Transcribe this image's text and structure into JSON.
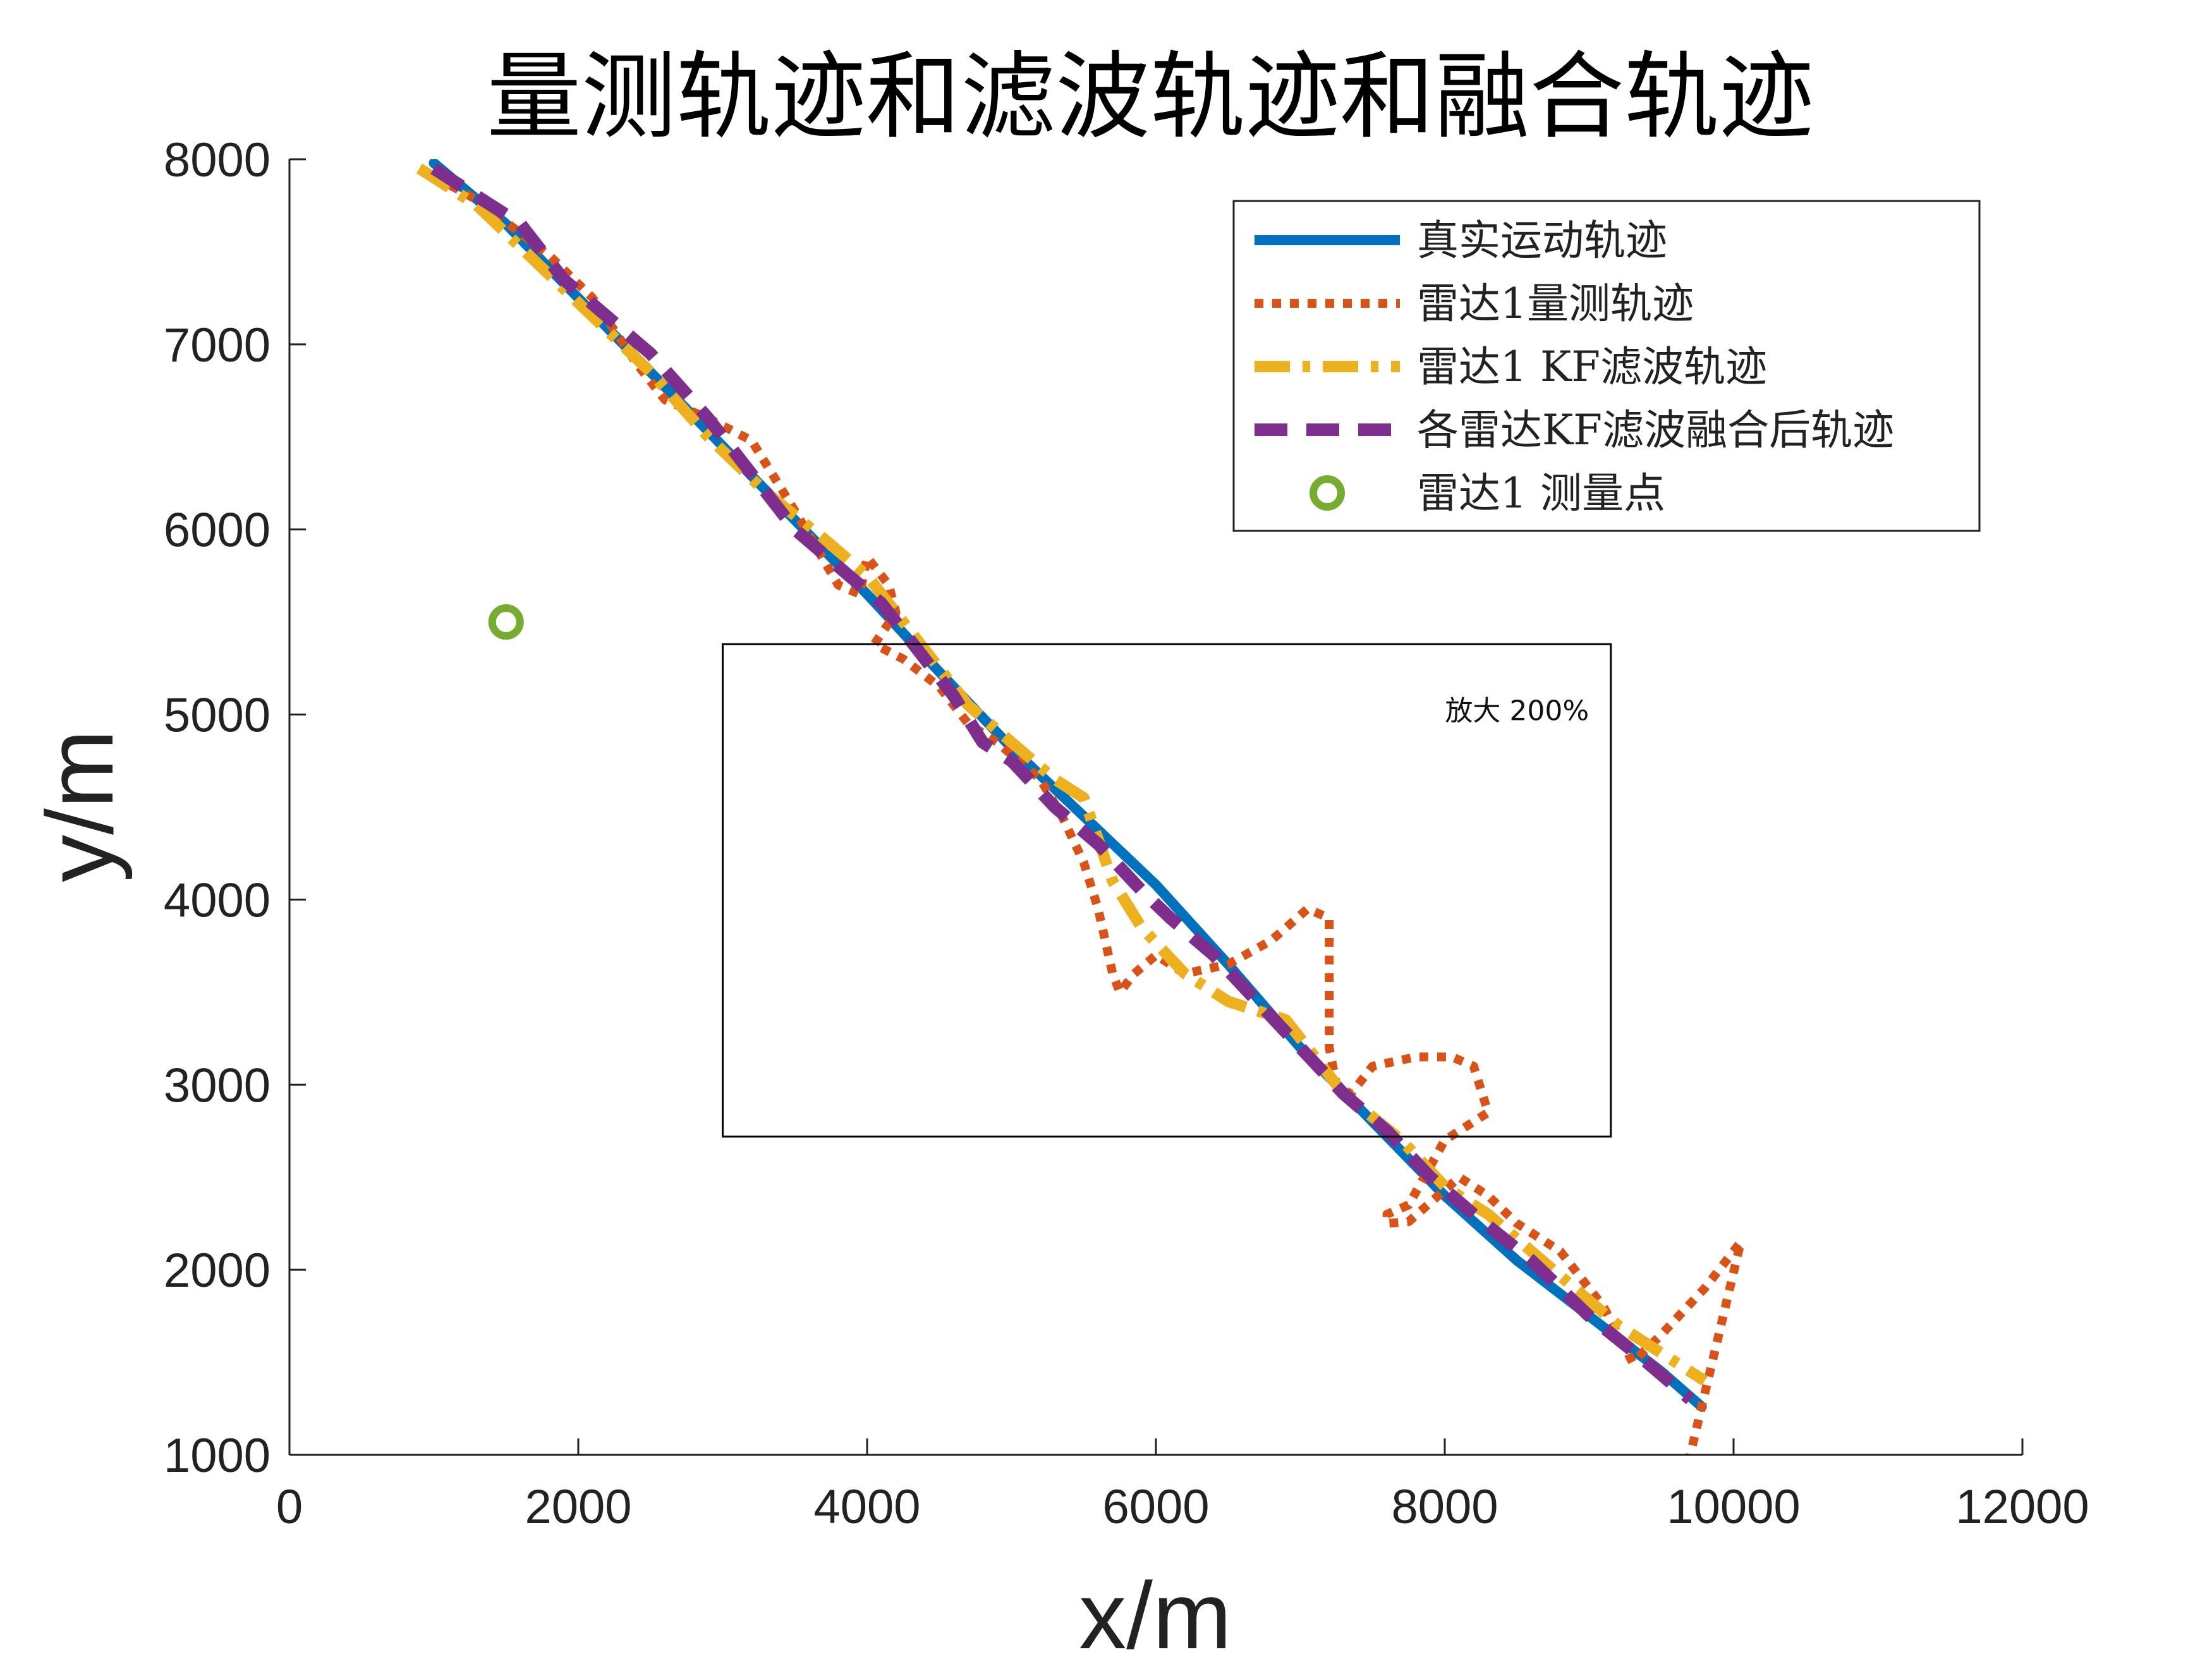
{
  "chart_data": {
    "type": "line",
    "title": "量测轨迹和滤波轨迹和融合轨迹",
    "xlabel": "x/m",
    "ylabel": "y/m",
    "xlim": [
      0,
      12000
    ],
    "ylim": [
      1000,
      8000
    ],
    "xticks": [
      "0",
      "2000",
      "4000",
      "6000",
      "8000",
      "10000",
      "12000"
    ],
    "yticks": [
      "1000",
      "2000",
      "3000",
      "4000",
      "5000",
      "6000",
      "7000",
      "8000"
    ],
    "grid": false,
    "legend_position": "top-right",
    "annotation": {
      "text": "放大 200%",
      "box_x": [
        3000,
        9150
      ],
      "box_y": [
        2720,
        5380
      ],
      "text_x": 8500,
      "text_y": 4970
    },
    "series": [
      {
        "name": "真实运动轨迹",
        "color": "#0072BD",
        "style": "solid",
        "x": [
          1000,
          1500,
          2000,
          2500,
          3000,
          3500,
          4000,
          4500,
          5000,
          5500,
          6000,
          6500,
          7000,
          7500,
          8000,
          8500,
          9000,
          9500,
          9780
        ],
        "y": [
          7980,
          7650,
          7250,
          6850,
          6450,
          6050,
          5650,
          5230,
          4820,
          4450,
          4080,
          3650,
          3200,
          2800,
          2400,
          2050,
          1750,
          1450,
          1260
        ]
      },
      {
        "name": "雷达1量测轨迹",
        "color": "#D95319",
        "style": "dotted",
        "x": [
          900,
          1300,
          1600,
          1800,
          2100,
          2400,
          2600,
          2900,
          3200,
          3500,
          3800,
          3950,
          4000,
          4150,
          4200,
          4050,
          4250,
          4500,
          4700,
          4900,
          5200,
          5350,
          5500,
          5600,
          5700,
          5750,
          5850,
          6000,
          6200,
          6500,
          6800,
          7050,
          7200,
          7200,
          7250,
          7350,
          7500,
          7800,
          8000,
          8050,
          8200,
          8300,
          8000,
          7750,
          7600,
          7600,
          7750,
          8100,
          8300,
          8500,
          8800,
          9100,
          9300,
          9500,
          9800,
          10050,
          9700
        ],
        "y": [
          7950,
          7780,
          7600,
          7480,
          7250,
          6900,
          6700,
          6600,
          6480,
          6100,
          5700,
          5650,
          5850,
          5700,
          5550,
          5380,
          5300,
          5150,
          4950,
          4850,
          4650,
          4450,
          4200,
          3950,
          3600,
          3500,
          3600,
          3700,
          3600,
          3650,
          3780,
          3950,
          3900,
          3200,
          3000,
          2950,
          3100,
          3150,
          3150,
          3150,
          3100,
          2850,
          2700,
          2350,
          2300,
          2250,
          2260,
          2500,
          2400,
          2250,
          2100,
          1800,
          1500,
          1650,
          1900,
          2150,
          1000
        ]
      },
      {
        "name": "雷达1 KF滤波轨迹",
        "color": "#EDB120",
        "style": "dashdot",
        "x": [
          900,
          1300,
          1700,
          2100,
          2500,
          2900,
          3300,
          3700,
          4000,
          4150,
          4450,
          4700,
          5000,
          5300,
          5500,
          5700,
          5900,
          6200,
          6500,
          6900,
          7300,
          7700,
          8000,
          8300,
          8600,
          8900,
          9200,
          9500,
          9800
        ],
        "y": [
          7950,
          7750,
          7450,
          7150,
          6850,
          6500,
          6200,
          5950,
          5750,
          5600,
          5300,
          5050,
          4850,
          4650,
          4550,
          4100,
          3850,
          3600,
          3450,
          3350,
          2950,
          2700,
          2450,
          2300,
          2100,
          1900,
          1700,
          1550,
          1400
        ]
      },
      {
        "name": "各雷达KF滤波融合后轨迹",
        "color": "#7E2F8E",
        "style": "dashed",
        "x": [
          1000,
          1300,
          1600,
          1900,
          2200,
          2500,
          2900,
          3200,
          3500,
          3800,
          4100,
          4300,
          4600,
          4800,
          5000,
          5300,
          5600,
          5900,
          6100,
          6400,
          6700,
          7000,
          7300,
          7600,
          7900,
          8200,
          8600,
          9000,
          9400,
          9700
        ],
        "y": [
          7950,
          7800,
          7650,
          7350,
          7150,
          6950,
          6600,
          6300,
          6000,
          5800,
          5600,
          5400,
          5100,
          4850,
          4750,
          4500,
          4300,
          4050,
          3900,
          3700,
          3450,
          3200,
          2950,
          2750,
          2500,
          2300,
          2050,
          1750,
          1500,
          1300
        ]
      },
      {
        "name": "雷达1 测量点",
        "color": "#77AC30",
        "style": "marker",
        "x": [
          1500
        ],
        "y": [
          5500
        ]
      }
    ]
  }
}
